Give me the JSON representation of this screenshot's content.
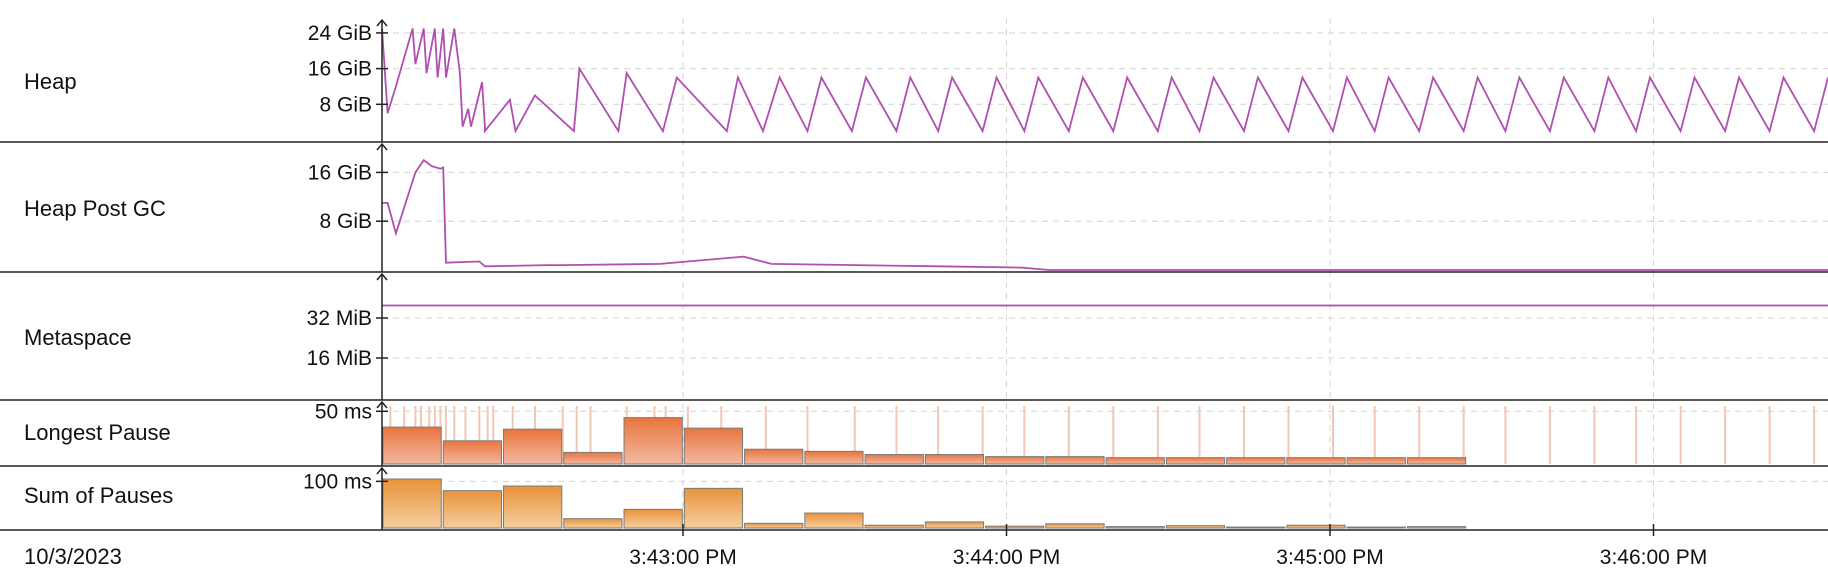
{
  "date_label": "10/3/2023",
  "time_ticks": [
    "3:43:00 PM",
    "3:44:00 PM",
    "3:45:00 PM",
    "3:46:00 PM"
  ],
  "colors": {
    "line": "#b04fb0",
    "pause_bar_dark": "#e8753d",
    "pause_bar_light": "#f2b8a2",
    "sum_bar_dark": "#e9923a",
    "sum_bar_light": "#f5cf9f",
    "pause_marker": "#f1c7b6",
    "grid": "#d4d4d4",
    "row_border": "#222222"
  },
  "chart_data": [
    {
      "type": "line",
      "row_label": "Heap",
      "y_ticks": [
        "24 GiB",
        "16 GiB",
        "8 GiB"
      ],
      "y_tick_values": [
        24,
        16,
        8
      ],
      "unit": "GiB",
      "ylim": [
        0,
        26
      ],
      "xlim": [
        0,
        5.2
      ],
      "series": [
        {
          "x": [
            0,
            0.02,
            0.05,
            0.11,
            0.12,
            0.15,
            0.16,
            0.19,
            0.2,
            0.22,
            0.23,
            0.26,
            0.28,
            0.29,
            0.31,
            0.32,
            0.36,
            0.37,
            0.37,
            0.46,
            0.48,
            0.55,
            0.69,
            0.71,
            0.85,
            0.88,
            1.01,
            1.06,
            1.24,
            1.28,
            1.37,
            1.43,
            1.53,
            1.58,
            1.69,
            1.74,
            1.85,
            1.9,
            2.0,
            2.05,
            2.16,
            2.21,
            2.31,
            2.36,
            2.47,
            2.52,
            2.63,
            2.68,
            2.79,
            2.84,
            2.94,
            2.99,
            3.1,
            3.15,
            3.26,
            3.31,
            3.42,
            3.47,
            3.57,
            3.62,
            3.73,
            3.78,
            3.89,
            3.94,
            4.04,
            4.09,
            4.2,
            4.25,
            4.36,
            4.41,
            4.51,
            4.56,
            4.67,
            4.72,
            4.83,
            4.88,
            4.99,
            5.04,
            5.15,
            5.2
          ],
          "y": [
            25,
            6,
            12,
            25,
            17,
            25,
            15,
            25,
            14,
            25,
            14,
            25,
            15,
            3,
            7,
            3,
            13,
            3,
            2,
            9,
            2,
            10,
            2,
            16,
            2,
            15,
            2,
            14,
            2,
            14,
            2,
            14,
            2,
            14,
            2,
            14,
            2,
            14,
            2,
            14,
            2,
            14,
            2,
            14,
            2,
            14,
            2,
            14,
            2,
            14,
            2,
            14,
            2,
            14,
            2,
            14,
            2,
            14,
            2,
            14,
            2,
            14,
            2,
            14,
            2,
            14,
            2,
            14,
            2,
            14,
            2,
            14,
            2,
            14,
            2,
            14,
            2,
            14,
            2,
            14
          ]
        }
      ]
    },
    {
      "type": "line",
      "row_label": "Heap Post GC",
      "y_ticks": [
        "16 GiB",
        "8 GiB"
      ],
      "y_tick_values": [
        16,
        8
      ],
      "unit": "GiB",
      "ylim": [
        0,
        20
      ],
      "xlim": [
        0,
        5.2
      ],
      "series": [
        {
          "x": [
            0,
            0.02,
            0.05,
            0.12,
            0.15,
            0.18,
            0.21,
            0.22,
            0.23,
            0.35,
            0.37,
            0.38,
            0.6,
            0.65,
            1.0,
            1.3,
            1.4,
            2.0,
            2.3,
            2.4,
            2.6,
            3.0,
            4.0,
            5.2
          ],
          "y": [
            11,
            11,
            6,
            16,
            18,
            17,
            16.6,
            16.8,
            1.2,
            1.4,
            0.6,
            0.6,
            0.8,
            0.8,
            1.0,
            2.2,
            1.0,
            0.6,
            0.4,
            0.0,
            0.0,
            0.0,
            0.0,
            0.0
          ]
        }
      ]
    },
    {
      "type": "line",
      "row_label": "Metaspace",
      "y_ticks": [
        "32 MiB",
        "16 MiB"
      ],
      "y_tick_values": [
        32,
        16
      ],
      "unit": "MiB",
      "ylim": [
        0,
        48
      ],
      "xlim": [
        0,
        5.2
      ],
      "series": [
        {
          "x": [
            0,
            5.2
          ],
          "y": [
            37,
            37
          ]
        }
      ]
    },
    {
      "type": "bar",
      "row_label": "Longest Pause",
      "y_ticks": [
        "50 ms"
      ],
      "y_tick_values": [
        50
      ],
      "unit": "ms",
      "ylim": [
        0,
        55
      ],
      "xlim": [
        0,
        5.2
      ],
      "bin_width": 0.2167,
      "values": [
        35,
        22,
        33,
        11,
        44,
        34,
        14,
        12,
        9,
        9,
        7,
        7,
        6,
        6,
        6,
        6,
        6,
        6
      ],
      "pause_markers": [
        0.03,
        0.08,
        0.12,
        0.14,
        0.17,
        0.19,
        0.21,
        0.23,
        0.26,
        0.3,
        0.35,
        0.38,
        0.4,
        0.47,
        0.55,
        0.65,
        0.7,
        0.75,
        0.88,
        0.98,
        1.02,
        1.1,
        1.22,
        1.38,
        1.53,
        1.7,
        1.85,
        2.0,
        2.16,
        2.31,
        2.47,
        2.63,
        2.79,
        2.94,
        3.1,
        3.26,
        3.42,
        3.57,
        3.73,
        3.89,
        4.04,
        4.2,
        4.36,
        4.51,
        4.67,
        4.83,
        4.99,
        5.15
      ]
    },
    {
      "type": "bar",
      "row_label": "Sum of Pauses",
      "y_ticks": [
        "100 ms"
      ],
      "y_tick_values": [
        100
      ],
      "unit": "ms",
      "ylim": [
        0,
        120
      ],
      "xlim": [
        0,
        5.2
      ],
      "bin_width": 0.2167,
      "values": [
        105,
        80,
        90,
        20,
        40,
        85,
        10,
        32,
        6,
        13,
        4,
        9,
        3,
        5,
        2,
        6,
        2,
        3
      ]
    }
  ]
}
